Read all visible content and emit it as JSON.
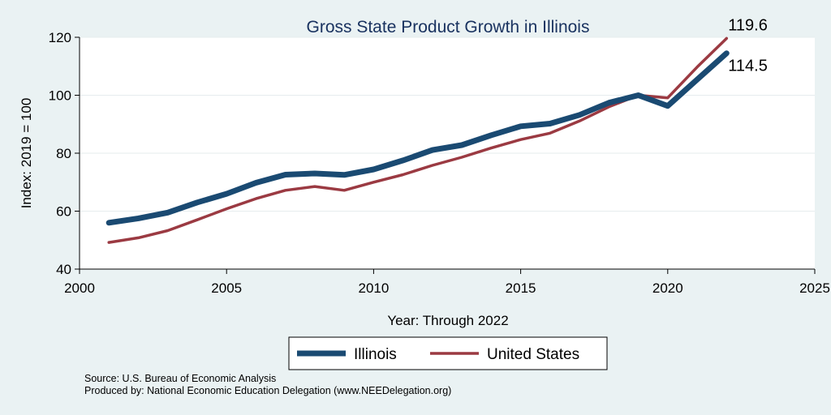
{
  "chart_data": {
    "type": "line",
    "title": "Gross State Product Growth in Illinois",
    "xlabel": "Year: Through 2022",
    "ylabel": "Index: 2019 = 100",
    "xlim": [
      2000,
      2025
    ],
    "ylim": [
      40,
      120
    ],
    "xticks": [
      2000,
      2005,
      2010,
      2015,
      2020,
      2025
    ],
    "yticks": [
      40,
      60,
      80,
      100,
      120
    ],
    "grid": true,
    "legend_position": "bottom",
    "x": [
      2001,
      2002,
      2003,
      2004,
      2005,
      2006,
      2007,
      2008,
      2009,
      2010,
      2011,
      2012,
      2013,
      2014,
      2015,
      2016,
      2017,
      2018,
      2019,
      2020,
      2021,
      2022
    ],
    "series": [
      {
        "name": "Illinois",
        "color": "#1a4a72",
        "values": [
          56.0,
          57.5,
          59.5,
          63.0,
          66.0,
          69.8,
          72.6,
          73.0,
          72.5,
          74.4,
          77.5,
          81.1,
          82.8,
          86.2,
          89.3,
          90.2,
          93.2,
          97.4,
          100.0,
          96.3,
          105.4,
          114.5
        ],
        "end_label": "114.5"
      },
      {
        "name": "United States",
        "color": "#9b3a42",
        "values": [
          49.2,
          50.8,
          53.3,
          57.0,
          60.8,
          64.3,
          67.2,
          68.5,
          67.2,
          70.0,
          72.6,
          75.8,
          78.6,
          81.8,
          84.7,
          86.9,
          91.1,
          96.0,
          100.0,
          99.1,
          109.7,
          119.6
        ],
        "end_label": "119.6"
      }
    ]
  },
  "notes": {
    "source": "Source: U.S. Bureau of Economic Analysis",
    "produced_by": "Produced by: National Economic Education Delegation (www.NEEDelegation.org)"
  }
}
